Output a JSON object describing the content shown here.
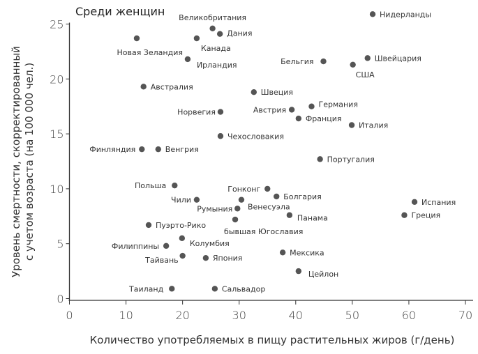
{
  "chart_data": {
    "type": "scatter",
    "title": "Среди женщин",
    "xlabel": "Количество употребляемых в пищу растительных жиров (г/день)",
    "ylabel": [
      "Уровень смертности, скорректированный",
      "с учетом возраста (на 100 000 чел.)"
    ],
    "xlim": [
      0,
      70
    ],
    "ylim": [
      0,
      25
    ],
    "xticks": [
      0,
      10,
      20,
      30,
      40,
      50,
      60,
      70
    ],
    "yticks": [
      0,
      5,
      10,
      15,
      20,
      25
    ],
    "grid": false,
    "marker_color": "#555555",
    "points": [
      {
        "label": "Великобритания",
        "x": 25.3,
        "y": 24.6
      },
      {
        "label": "Дания",
        "x": 26.6,
        "y": 24.1
      },
      {
        "label": "Новая Зеландия",
        "x": 11.9,
        "y": 23.7
      },
      {
        "label": "Канада",
        "x": 22.5,
        "y": 23.7
      },
      {
        "label": "Ирландия",
        "x": 20.9,
        "y": 21.8
      },
      {
        "label": "Австралия",
        "x": 13.1,
        "y": 19.3
      },
      {
        "label": "Норвегия",
        "x": 26.7,
        "y": 17.0
      },
      {
        "label": "Чехословакия",
        "x": 26.7,
        "y": 14.8
      },
      {
        "label": "Финляндия",
        "x": 12.8,
        "y": 13.6
      },
      {
        "label": "Венгрия",
        "x": 15.7,
        "y": 13.6
      },
      {
        "label": "Нидерланды",
        "x": 53.6,
        "y": 25.9
      },
      {
        "label": "Швейцария",
        "x": 52.7,
        "y": 21.9
      },
      {
        "label": "Бельгия",
        "x": 44.9,
        "y": 21.6
      },
      {
        "label": "США",
        "x": 50.1,
        "y": 21.3
      },
      {
        "label": "Швеция",
        "x": 32.6,
        "y": 18.8
      },
      {
        "label": "Германия",
        "x": 42.8,
        "y": 17.5
      },
      {
        "label": "Австрия",
        "x": 39.3,
        "y": 17.2
      },
      {
        "label": "Франция",
        "x": 40.5,
        "y": 16.4
      },
      {
        "label": "Италия",
        "x": 49.9,
        "y": 15.8
      },
      {
        "label": "Португалия",
        "x": 44.3,
        "y": 12.7
      },
      {
        "label": "Польша",
        "x": 18.6,
        "y": 10.3
      },
      {
        "label": "Гонконг",
        "x": 35.0,
        "y": 10.0
      },
      {
        "label": "Болгария",
        "x": 36.6,
        "y": 9.3
      },
      {
        "label": "Чили",
        "x": 22.5,
        "y": 9.0
      },
      {
        "label": "Венесуэла",
        "x": 30.4,
        "y": 9.0
      },
      {
        "label": "Румыния",
        "x": 29.7,
        "y": 8.2
      },
      {
        "label": "Панама",
        "x": 38.9,
        "y": 7.6
      },
      {
        "label": "бывшая Югославия",
        "x": 29.3,
        "y": 7.2
      },
      {
        "label": "Пуэрто-Рико",
        "x": 14.0,
        "y": 6.7
      },
      {
        "label": "Колумбия",
        "x": 19.9,
        "y": 5.5
      },
      {
        "label": "Филиппины",
        "x": 17.1,
        "y": 4.8
      },
      {
        "label": "Тайвань",
        "x": 20.0,
        "y": 3.9
      },
      {
        "label": "Япония",
        "x": 24.1,
        "y": 3.7
      },
      {
        "label": "Мексика",
        "x": 37.7,
        "y": 4.2
      },
      {
        "label": "Цейлон",
        "x": 40.5,
        "y": 2.5
      },
      {
        "label": "Таиланд",
        "x": 18.1,
        "y": 0.9
      },
      {
        "label": "Сальвадор",
        "x": 25.7,
        "y": 0.9
      },
      {
        "label": "Испания",
        "x": 61.0,
        "y": 8.8
      },
      {
        "label": "Греция",
        "x": 59.2,
        "y": 7.6
      }
    ]
  }
}
